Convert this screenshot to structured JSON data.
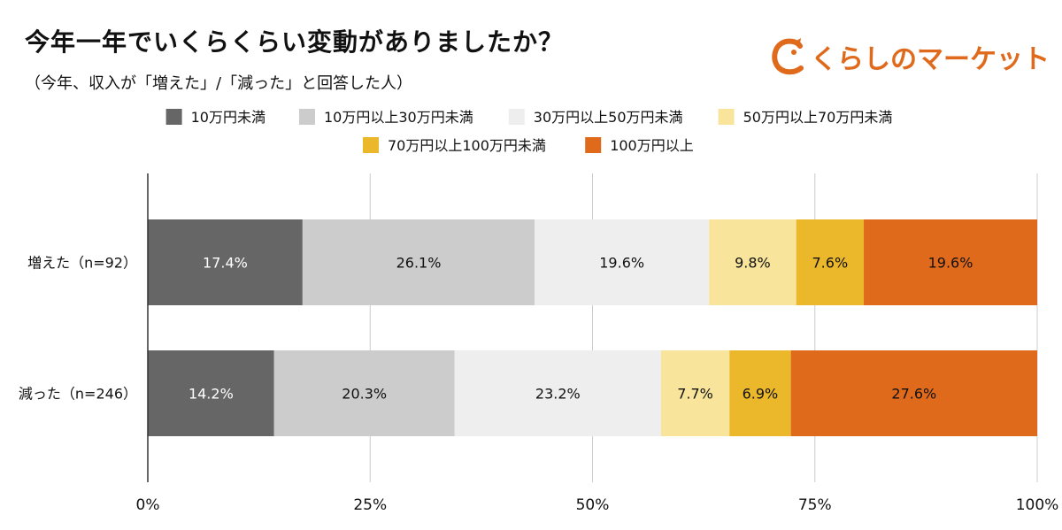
{
  "header": {
    "title": "今年一年でいくらくらい変動がありましたか？",
    "subtitle": "（今年、収入が「増えた」/「減った」と回答した人）"
  },
  "logo": {
    "text": "くらしのマーケット",
    "icon": "kurashi-c-mascot-icon",
    "color": "#e06a1c"
  },
  "chart_data": {
    "type": "bar",
    "orientation": "horizontal",
    "stacked": "percent",
    "categories": [
      "増えた（n=92）",
      "減った（n=246）"
    ],
    "series": [
      {
        "name": "10万円未満",
        "color": "#666666",
        "label_color": "#ffffff",
        "values": [
          17.4,
          14.2
        ]
      },
      {
        "name": "10万円以上30万円未満",
        "color": "#cccccc",
        "label_color": "#111111",
        "values": [
          26.1,
          20.3
        ]
      },
      {
        "name": "30万円以上50万円未満",
        "color": "#eeeeee",
        "label_color": "#111111",
        "values": [
          19.6,
          23.2
        ]
      },
      {
        "name": "50万円以上70万円未満",
        "color": "#f8e59b",
        "label_color": "#111111",
        "values": [
          9.8,
          7.7
        ]
      },
      {
        "name": "70万円以上100万円未満",
        "color": "#ebb82c",
        "label_color": "#111111",
        "values": [
          7.6,
          6.9
        ]
      },
      {
        "name": "100万円以上",
        "color": "#e06a1c",
        "label_color": "#111111",
        "values": [
          19.6,
          27.6
        ]
      }
    ],
    "data_labels": [
      [
        "17.4%",
        "26.1%",
        "19.6%",
        "9.8%",
        "7.6%",
        "19.6%"
      ],
      [
        "14.2%",
        "20.3%",
        "23.2%",
        "7.7%",
        "6.9%",
        "27.6%"
      ]
    ],
    "xlim": [
      0,
      100
    ],
    "xticks": [
      "0%",
      "25%",
      "50%",
      "75%",
      "100%"
    ],
    "grid": true,
    "legend_position": "top"
  }
}
